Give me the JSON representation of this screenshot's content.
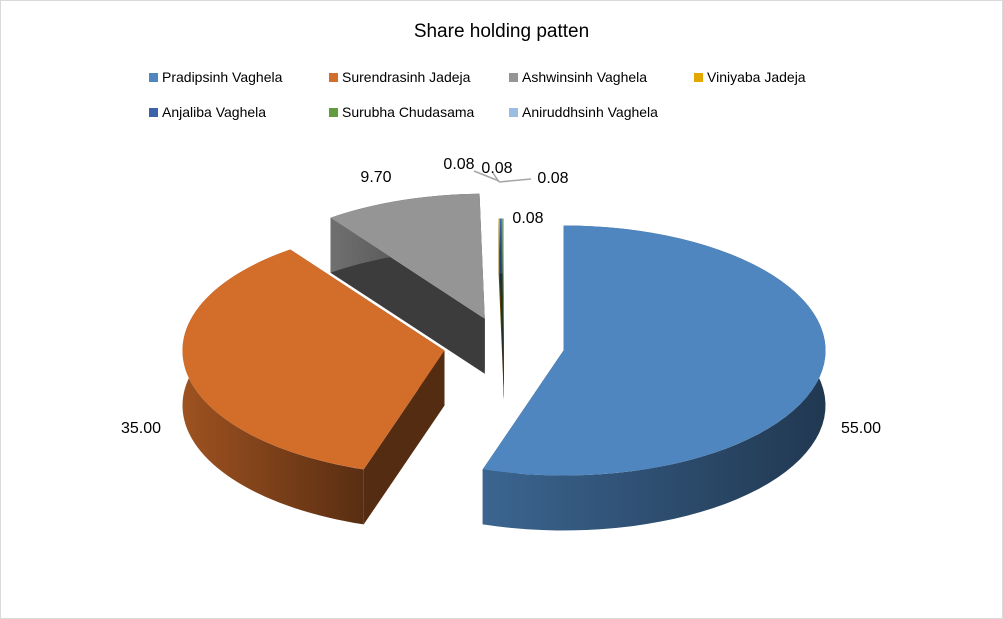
{
  "chart_data": {
    "type": "pie",
    "style": "3d-exploded",
    "title": "Share holding patten",
    "legend_position": "top",
    "categories": [
      "Pradipsinh Vaghela",
      "Surendrasinh Jadeja",
      "Ashwinsinh Vaghela",
      "Viniyaba Jadeja",
      "Anjaliba Vaghela",
      "Surubha Chudasama",
      "Aniruddhsinh Vaghela"
    ],
    "values": [
      55.0,
      35.0,
      9.7,
      0.08,
      0.08,
      0.08,
      0.08
    ],
    "data_labels": [
      "55.00",
      "35.00",
      "9.70",
      "0.08",
      "0.08",
      "0.08",
      "0.08"
    ],
    "colors": [
      "#4f86c0",
      "#d36d2a",
      "#959595",
      "#e3a800",
      "#3c62ab",
      "#629c3e",
      "#9bbde3"
    ]
  }
}
